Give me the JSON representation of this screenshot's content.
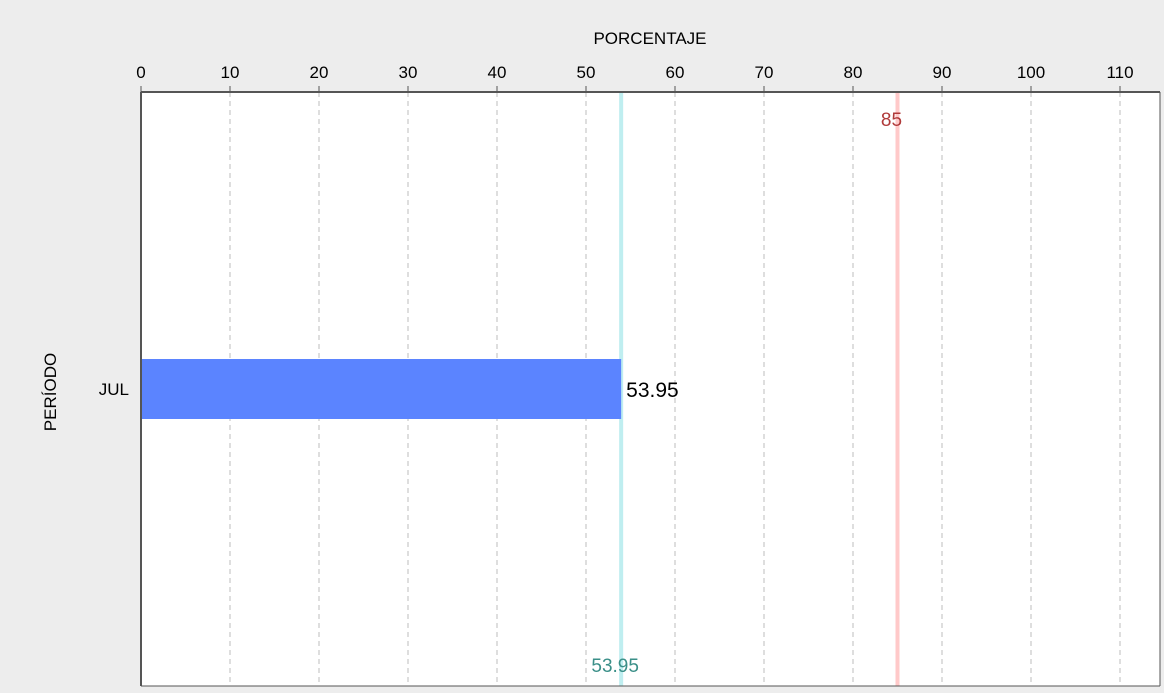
{
  "chart_data": {
    "type": "bar",
    "orientation": "horizontal",
    "xlabel": "PORCENTAJE",
    "ylabel": "PERÍODO",
    "x_axis_position": "top",
    "xlim": [
      0,
      115
    ],
    "x_ticks": [
      0,
      10,
      20,
      30,
      40,
      50,
      60,
      70,
      80,
      90,
      100,
      110
    ],
    "grid": "vertical dashed",
    "categories": [
      "JUL"
    ],
    "series": [
      {
        "values": [
          53.95
        ],
        "color": "#5b84ff"
      }
    ],
    "data_labels": [
      "53.95"
    ],
    "reference_lines": [
      {
        "value": 53.95,
        "label": "53.95",
        "line_color": "#bfeef0",
        "label_color": "#3a8f88",
        "label_position": "bottom"
      },
      {
        "value": 85,
        "label": "85",
        "line_color": "#ffc9c9",
        "label_color": "#b03a3a",
        "label_position": "top"
      }
    ]
  },
  "colors": {
    "background": "#ededed",
    "plot_background": "#ffffff",
    "grid": "#bdbdbd",
    "axis": "#555555"
  }
}
